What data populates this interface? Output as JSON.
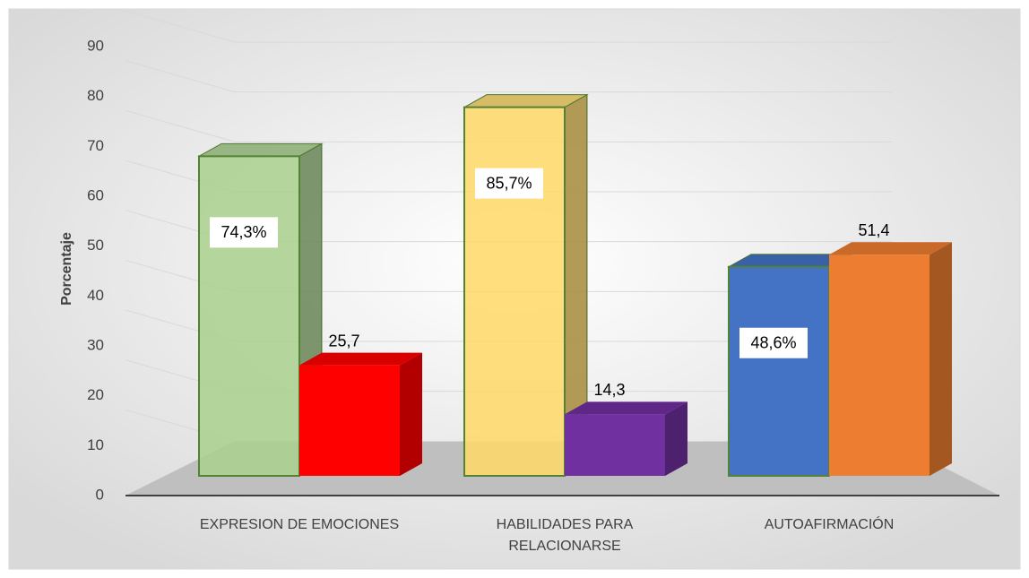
{
  "chart_data": {
    "type": "bar3d",
    "y_label": "Porcentaje",
    "categories": [
      "EXPRESION DE EMOCIONES",
      "HABILIDADES PARA RELACIONARSE",
      "AUTOAFIRMACIÓN"
    ],
    "series": [
      {
        "values": [
          74.3,
          85.7,
          48.6
        ],
        "value_labels": [
          "74,3%",
          "85,7%",
          "48,6%"
        ],
        "colors": [
          "#a9d18e",
          "#ffd966",
          "#4472c4"
        ]
      },
      {
        "values": [
          25.7,
          14.3,
          51.4
        ],
        "value_labels": [
          "25,7",
          "14,3",
          "51,4"
        ],
        "colors": [
          "#ff0000",
          "#7030a0",
          "#ed7d31"
        ]
      }
    ],
    "ylim": [
      0,
      90
    ],
    "yticks": [
      0,
      10,
      20,
      30,
      40,
      50,
      60,
      70,
      80,
      90
    ],
    "grid": true
  }
}
